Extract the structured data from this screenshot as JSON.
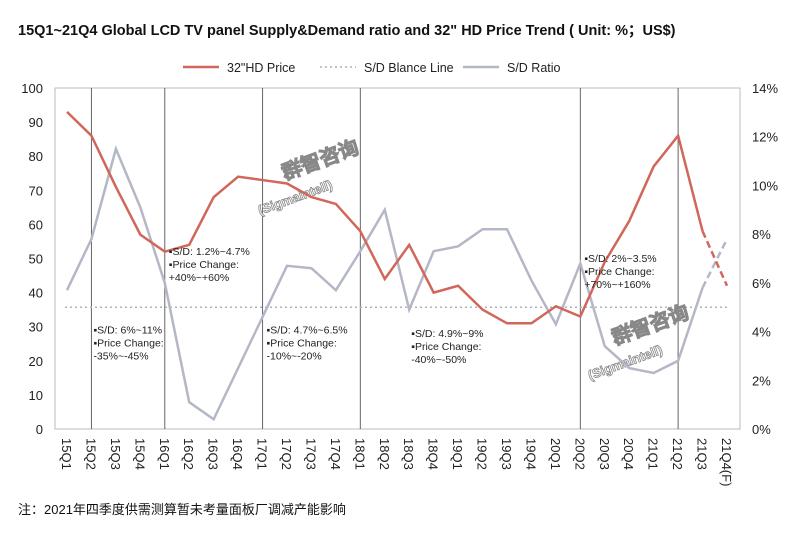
{
  "title": "15Q1~21Q4 Global LCD TV panel Supply&Demand ratio and 32\" HD Price Trend ( Unit: %；US$)",
  "footnote": "注：2021年四季度供需测算暂未考量面板厂调减产能影响",
  "watermark": {
    "cn": "群智咨询",
    "en": "(Sigmaintell)"
  },
  "chart_data": {
    "type": "line",
    "title": "15Q1~21Q4 Global LCD TV panel Supply&Demand ratio and 32\" HD Price Trend ( Unit: %；US$)",
    "categories": [
      "15Q1",
      "15Q2",
      "15Q3",
      "15Q4",
      "16Q1",
      "16Q2",
      "16Q3",
      "16Q4",
      "17Q1",
      "17Q2",
      "17Q3",
      "17Q4",
      "18Q1",
      "18Q2",
      "18Q3",
      "18Q4",
      "19Q1",
      "19Q2",
      "19Q3",
      "19Q4",
      "20Q1",
      "20Q2",
      "20Q3",
      "20Q4",
      "21Q1",
      "21Q2",
      "21Q3",
      "21Q4(F)"
    ],
    "left_axis": {
      "ylim": [
        0,
        100
      ],
      "ticks": [
        "0",
        "10",
        "20",
        "30",
        "40",
        "50",
        "60",
        "70",
        "80",
        "90",
        "100"
      ]
    },
    "right_axis": {
      "ylim": [
        0,
        14
      ],
      "ticks": [
        "0%",
        "2%",
        "4%",
        "6%",
        "8%",
        "10%",
        "12%",
        "14%"
      ]
    },
    "legend_position": "top",
    "series": [
      {
        "name": "32\"HD Price",
        "axis": "left",
        "color": "#d0675a",
        "forecast_from": "21Q3",
        "values": [
          93,
          86,
          71,
          57,
          52,
          54,
          68,
          74,
          73,
          72,
          68,
          66,
          58,
          44,
          54,
          40,
          42,
          35,
          31,
          31,
          36,
          33,
          49,
          61,
          77,
          86,
          58,
          42
        ]
      },
      {
        "name": "S/D Blance Line",
        "axis": "right",
        "color": "#a9b0c4",
        "style": "dotted",
        "value": 5
      },
      {
        "name": "S/D Ratio",
        "axis": "right",
        "color": "#b4b8c6",
        "forecast_from": "21Q3",
        "values": [
          5.7,
          7.8,
          11.5,
          9.1,
          6.0,
          1.1,
          0.4,
          2.5,
          4.6,
          6.7,
          6.6,
          5.7,
          7.3,
          9.0,
          4.9,
          7.3,
          7.5,
          8.2,
          8.2,
          6.1,
          4.3,
          6.8,
          3.4,
          2.5,
          2.3,
          2.8,
          5.8,
          7.8
        ]
      }
    ],
    "phase_dividers": [
      "15Q2",
      "16Q1",
      "17Q1",
      "18Q1",
      "20Q2",
      "21Q2"
    ],
    "annotations": [
      {
        "at": "15Q2",
        "lines": [
          "▪S/D: 6%~11%",
          "▪Price Change:",
          "-35%~-45%"
        ],
        "value": 28
      },
      {
        "at": "16Q1",
        "lines": [
          "▪S/D: 1.2%~4.7%",
          "▪Price Change:",
          "+40%~+60%"
        ],
        "value": 51
      },
      {
        "at": "17Q1",
        "lines": [
          "▪S/D: 4.7%~6.5%",
          "▪Price Change:",
          "-10%~-20%"
        ],
        "value": 28
      },
      {
        "at": "18Q3",
        "lines": [
          "▪S/D: 4.9%~9%",
          "▪Price Change:",
          "-40%~-50%"
        ],
        "value": 27
      },
      {
        "at": "20Q2",
        "lines": [
          "▪S/D: 2%~3.5%",
          "▪Price Change:",
          "+70%~+160%"
        ],
        "value": 49
      }
    ]
  }
}
